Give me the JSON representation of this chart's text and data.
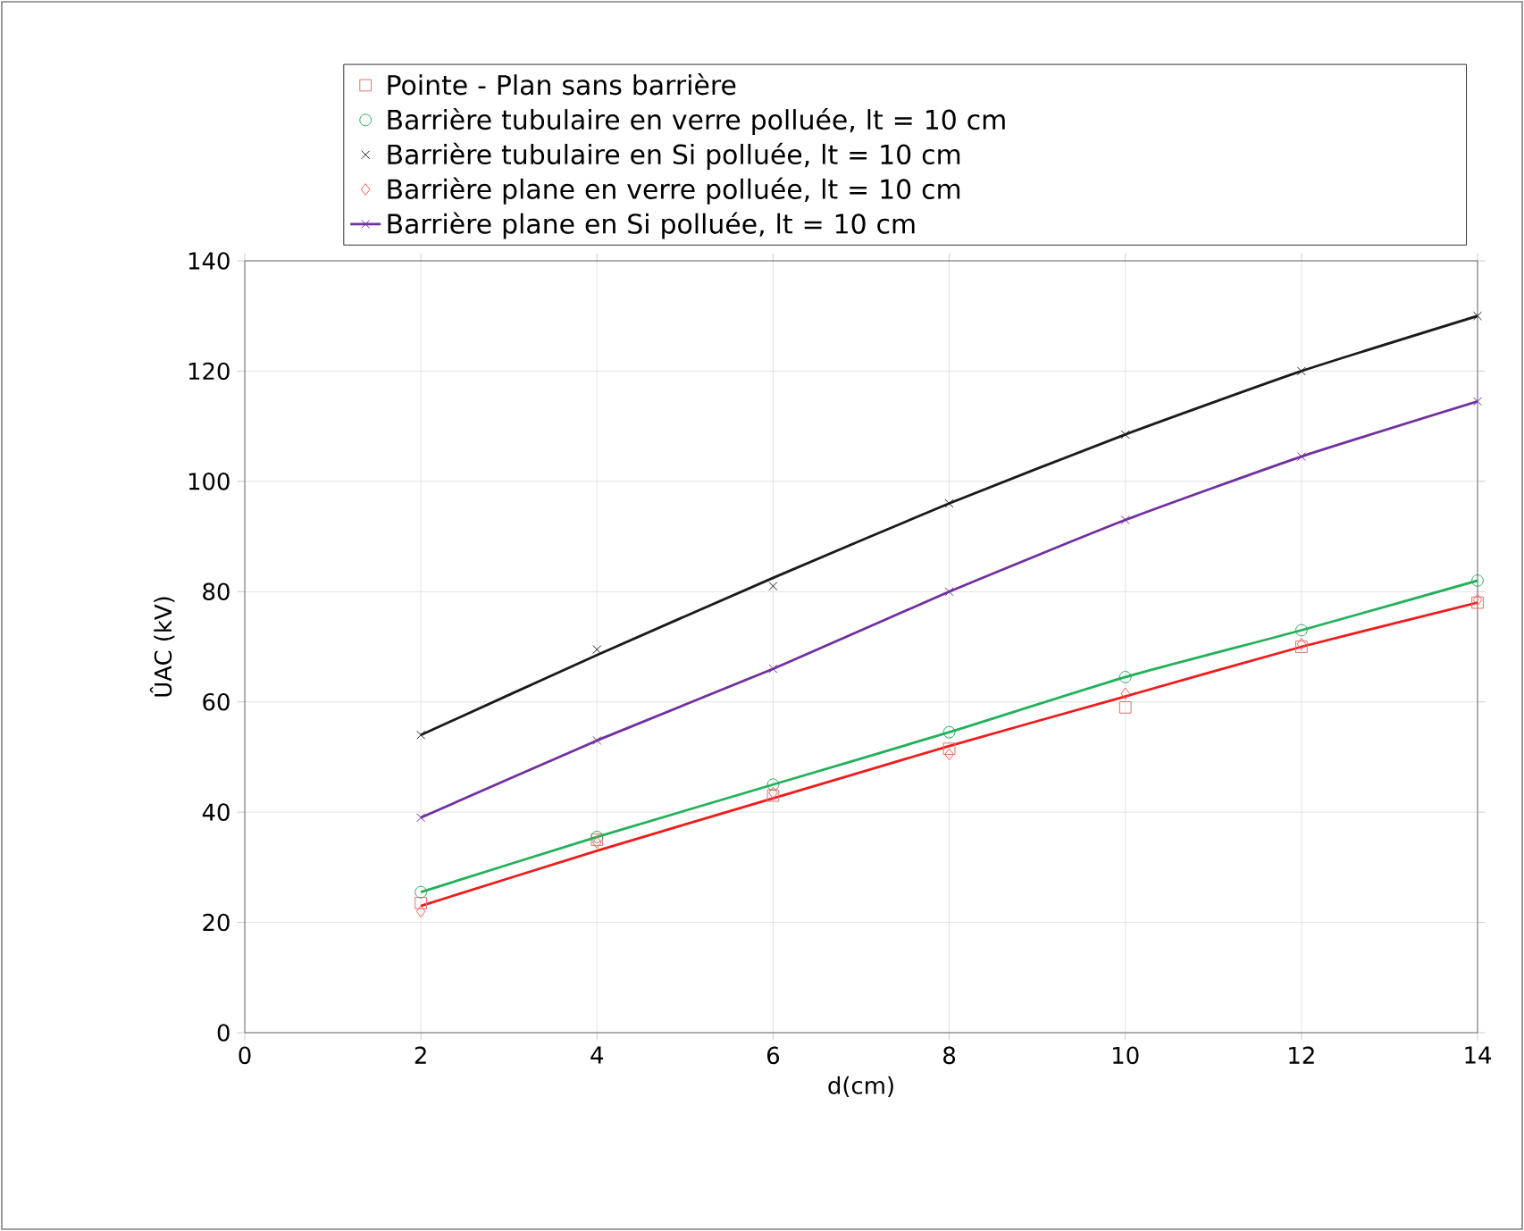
{
  "chart_data": {
    "type": "scatter",
    "xlabel": "d(cm)",
    "ylabel": "ÛAC (kV)",
    "xlim": [
      0,
      14
    ],
    "ylim": [
      0,
      140
    ],
    "xticks": [
      0,
      2,
      4,
      6,
      8,
      10,
      12,
      14
    ],
    "yticks": [
      0,
      20,
      40,
      60,
      80,
      100,
      120,
      140
    ],
    "grid": true,
    "legend": "top",
    "series": [
      {
        "type": "line",
        "color": "#1a1a1a",
        "x": [
          2,
          4,
          6,
          8,
          10,
          12,
          14
        ],
        "values": [
          54,
          68.5,
          82.5,
          96,
          108.5,
          120,
          130
        ],
        "marker": "none",
        "line_style": "solid"
      },
      {
        "type": "line",
        "color": "#22b15a",
        "x": [
          2,
          4,
          6,
          8,
          10,
          12,
          14
        ],
        "values": [
          25.5,
          35.5,
          45,
          54.5,
          64.5,
          73,
          82
        ],
        "marker": "none",
        "line_style": "solid"
      },
      {
        "type": "line",
        "color": "#ee1c1c",
        "x": [
          2,
          4,
          6,
          8,
          10,
          12,
          14
        ],
        "values": [
          23,
          33,
          42.5,
          52,
          61,
          70,
          78
        ],
        "marker": "none",
        "line_style": "solid"
      },
      {
        "name": "Pointe - Plan sans barrière",
        "color": "#e07070",
        "x": [
          2,
          4,
          6,
          8,
          10,
          12,
          14
        ],
        "values": [
          23.5,
          35,
          43,
          51.5,
          59,
          70,
          78
        ],
        "marker": "square"
      },
      {
        "name": "Barrière tubulaire en verre polluée, lt = 10 cm",
        "color": "#22a85a",
        "x": [
          2,
          4,
          6,
          8,
          10,
          12,
          14
        ],
        "values": [
          25.5,
          35.5,
          45,
          54.5,
          64.5,
          73,
          82
        ],
        "marker": "circle"
      },
      {
        "name": "Barrière tubulaire en Si polluée, lt = 10 cm",
        "color": "#222222",
        "x": [
          2,
          4,
          6,
          8,
          10,
          12,
          14
        ],
        "values": [
          54,
          69.5,
          81,
          96,
          108.5,
          120,
          130
        ],
        "marker": "cross"
      },
      {
        "name": "Barrière plane en verre polluée, lt = 10 cm",
        "color": "#ff5a5a",
        "x": [
          2,
          4,
          6,
          8,
          10,
          12,
          14
        ],
        "values": [
          22,
          34.5,
          43.5,
          50.5,
          61.5,
          70.5,
          78.5
        ],
        "marker": "diamond"
      },
      {
        "name": "Barrière plane en Si polluée, lt = 10 cm",
        "type": "line",
        "color": "#7030a0",
        "x": [
          2,
          4,
          6,
          8,
          10,
          12,
          14
        ],
        "values": [
          39,
          53,
          66,
          80,
          93,
          104.5,
          114.5
        ],
        "marker": "cross",
        "line_style": "solid"
      }
    ]
  }
}
